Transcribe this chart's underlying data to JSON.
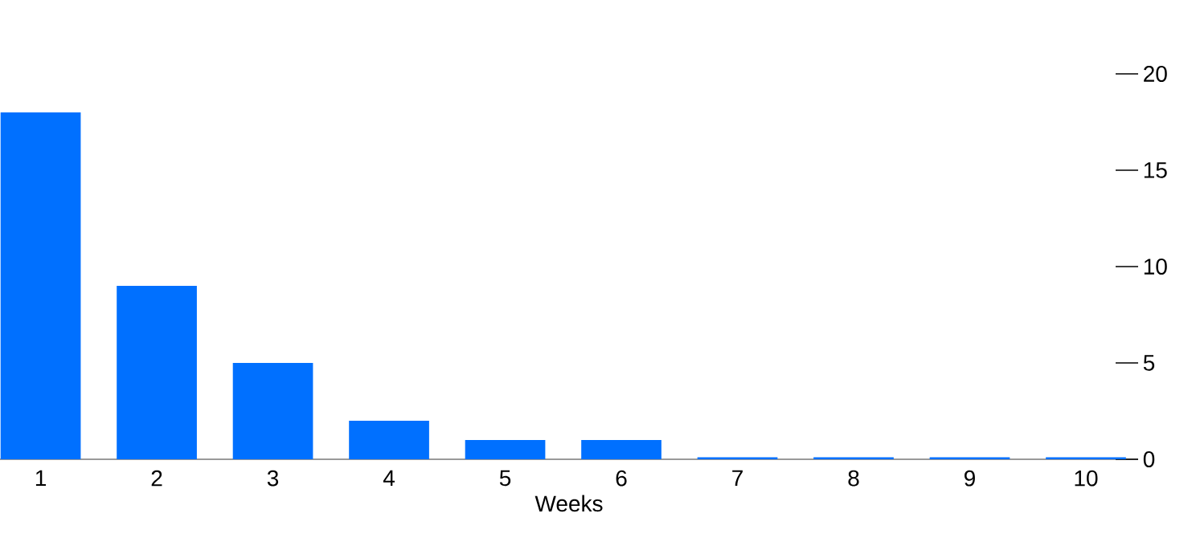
{
  "chart_data": {
    "type": "bar",
    "xlabel": "Weeks",
    "categories": [
      "1",
      "2",
      "3",
      "4",
      "5",
      "6",
      "7",
      "8",
      "9",
      "10"
    ],
    "values": [
      18,
      9,
      5,
      2,
      1,
      1,
      0.1,
      0.1,
      0.1,
      0.1
    ],
    "color": "#0070ff",
    "ylim": [
      0,
      20
    ],
    "yticks": [
      0,
      5,
      10,
      15,
      20
    ],
    "grid": false
  }
}
